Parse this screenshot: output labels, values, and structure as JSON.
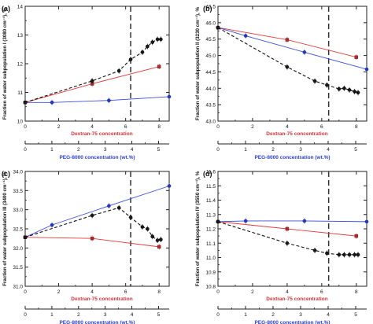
{
  "chart_data": [
    {
      "panel_label": "(a)",
      "type": "line",
      "ylabel": "Fraction of water subpopulation I (3080 cm⁻¹), %",
      "xlabel_top": "Dextran-75 concentration",
      "xlabel_bottom": "PEG-8000 concentration (wt.%)",
      "ylim": [
        10,
        14
      ],
      "yticks": [
        "10",
        "11",
        "12",
        "13",
        "14"
      ],
      "xlim_top": [
        0,
        8.6
      ],
      "xticks_top": [
        "0",
        "2",
        "4",
        "6",
        "8"
      ],
      "xlim_bottom": [
        0,
        5.4
      ],
      "xticks_bottom": [
        "0",
        "1",
        "2",
        "3",
        "4",
        "5"
      ],
      "dashed_vline_top_x": 6.3,
      "series": [
        {
          "color": "#e03b3b",
          "style": "solid",
          "marker": "square",
          "x": [
            0,
            4,
            8
          ],
          "y": [
            10.65,
            11.3,
            11.9
          ]
        },
        {
          "color": "#3b4fd8",
          "style": "solid",
          "marker": "circle",
          "x": [
            0,
            1.6,
            5.0,
            8.6
          ],
          "y": [
            10.65,
            10.65,
            10.72,
            10.85
          ]
        },
        {
          "color": "#111111",
          "style": "dashed",
          "marker": "circle",
          "x": [
            0,
            4,
            5.6,
            6.3,
            7.0,
            7.3,
            7.6,
            7.9,
            8.1
          ],
          "y": [
            10.65,
            11.4,
            11.75,
            12.15,
            12.4,
            12.6,
            12.75,
            12.85,
            12.85
          ]
        }
      ]
    },
    {
      "panel_label": "(b)",
      "type": "line",
      "ylabel": "Fraction of water subpopulation II (3230 cm⁻¹), %",
      "xlabel_top": "Dextran-75 concentration",
      "xlabel_bottom": "PEG-8000 concentration (wt.%)",
      "ylim": [
        43.0,
        46.5
      ],
      "yticks": [
        "43.0",
        "43.5",
        "44.0",
        "44.5",
        "45.0",
        "45.5",
        "46.0",
        "46.5"
      ],
      "xlim_top": [
        0,
        8.6
      ],
      "xticks_top": [
        "0",
        "2",
        "4",
        "6",
        "8"
      ],
      "xlim_bottom": [
        0,
        5.4
      ],
      "xticks_bottom": [
        "0",
        "1",
        "2",
        "3",
        "4",
        "5"
      ],
      "dashed_vline_top_x": 6.4,
      "series": [
        {
          "color": "#e03b3b",
          "style": "solid",
          "marker": "square",
          "x": [
            0,
            4,
            8
          ],
          "y": [
            45.85,
            45.48,
            44.95
          ]
        },
        {
          "color": "#3b4fd8",
          "style": "solid",
          "marker": "circle",
          "x": [
            0,
            1.6,
            5.0,
            8.6
          ],
          "y": [
            45.85,
            45.6,
            45.1,
            44.58
          ]
        },
        {
          "color": "#111111",
          "style": "dashed",
          "marker": "circle",
          "x": [
            0,
            4,
            5.6,
            6.3,
            7.0,
            7.3,
            7.6,
            7.9,
            8.1
          ],
          "y": [
            45.85,
            44.65,
            44.22,
            44.1,
            43.98,
            44.0,
            43.95,
            43.9,
            43.87
          ]
        }
      ]
    },
    {
      "panel_label": "(c)",
      "type": "line",
      "ylabel": "Fraction of water subpopulation III (3400 cm⁻¹), %",
      "xlabel_top": "Dextran-75 concentration",
      "xlabel_bottom": "PEG-8000 concentration (wt.%)",
      "ylim": [
        31.0,
        34.0
      ],
      "yticks": [
        "31.0",
        "31.5",
        "32.0",
        "32.5",
        "33.0",
        "33.5",
        "34.0"
      ],
      "xlim_top": [
        0,
        8.6
      ],
      "xticks_top": [
        "0",
        "2",
        "4",
        "6",
        "8"
      ],
      "xlim_bottom": [
        0,
        5.4
      ],
      "xticks_bottom": [
        "0",
        "1",
        "2",
        "3",
        "4",
        "5"
      ],
      "dashed_vline_top_x": 6.3,
      "series": [
        {
          "color": "#e03b3b",
          "style": "solid",
          "marker": "square",
          "x": [
            0,
            4,
            8
          ],
          "y": [
            32.28,
            32.25,
            32.03
          ]
        },
        {
          "color": "#3b4fd8",
          "style": "solid",
          "marker": "circle",
          "x": [
            0,
            1.6,
            5.0,
            8.6
          ],
          "y": [
            32.28,
            32.6,
            33.1,
            33.62
          ]
        },
        {
          "color": "#111111",
          "style": "dashed",
          "marker": "circle",
          "x": [
            0,
            4,
            5.6,
            6.3,
            7.0,
            7.3,
            7.6,
            7.9,
            8.1
          ],
          "y": [
            32.28,
            32.85,
            33.05,
            32.8,
            32.55,
            32.5,
            32.3,
            32.2,
            32.22
          ]
        }
      ]
    },
    {
      "panel_label": "(d)",
      "type": "line",
      "ylabel": "Fraction of water subpopulation IV (3550 cm⁻¹), %",
      "xlabel_top": "Dextran-75 concentration",
      "xlabel_bottom": "PEG-8000 concentration (wt.%)",
      "ylim": [
        10.8,
        11.6
      ],
      "yticks": [
        "10.8",
        "10.9",
        "11.0",
        "11.1",
        "11.2",
        "11.3",
        "11.4",
        "11.5",
        "11.6"
      ],
      "xlim_top": [
        0,
        8.6
      ],
      "xticks_top": [
        "0",
        "2",
        "4",
        "6",
        "8"
      ],
      "xlim_bottom": [
        0,
        5.4
      ],
      "xticks_bottom": [
        "0",
        "1",
        "2",
        "3",
        "4",
        "5"
      ],
      "dashed_vline_top_x": 6.4,
      "series": [
        {
          "color": "#e03b3b",
          "style": "solid",
          "marker": "square",
          "x": [
            0,
            4,
            8
          ],
          "y": [
            11.25,
            11.2,
            11.15
          ]
        },
        {
          "color": "#3b4fd8",
          "style": "solid",
          "marker": "circle",
          "x": [
            0,
            1.6,
            5.0,
            8.6
          ],
          "y": [
            11.25,
            11.255,
            11.255,
            11.25
          ]
        },
        {
          "color": "#111111",
          "style": "dashed",
          "marker": "circle",
          "x": [
            0,
            4,
            5.6,
            6.3,
            7.0,
            7.3,
            7.6,
            7.9,
            8.1
          ],
          "y": [
            11.25,
            11.1,
            11.05,
            11.03,
            11.02,
            11.02,
            11.02,
            11.02,
            11.02
          ]
        }
      ]
    }
  ],
  "colors": {
    "top_axis_label": "#d9343a",
    "bottom_axis_label": "#2b3fd0",
    "axis": "#222222"
  }
}
